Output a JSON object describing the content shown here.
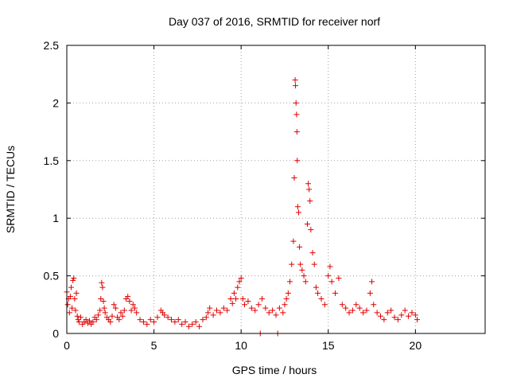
{
  "chart_data": {
    "type": "scatter",
    "title": "Day 037 of 2016, SRMTID for receiver norf",
    "xlabel": "GPS time / hours",
    "ylabel": "SRMTID / TECUs",
    "xlim": [
      0,
      24
    ],
    "ylim": [
      0,
      2.5
    ],
    "x_ticks": [
      0,
      5,
      10,
      15,
      20
    ],
    "x_tick_labels": [
      "0",
      "5",
      "10",
      "15",
      "20"
    ],
    "y_ticks": [
      0,
      0.5,
      1,
      1.5,
      2,
      2.5
    ],
    "y_tick_labels": [
      "0",
      "0.5",
      "1",
      "1.5",
      "2",
      "2.5"
    ],
    "grid": true,
    "marker": "+",
    "series": [
      {
        "name": "SRMTID",
        "color": "#e00000",
        "points": [
          [
            0.0,
            0.36
          ],
          [
            0.05,
            0.25
          ],
          [
            0.1,
            0.3
          ],
          [
            0.15,
            0.18
          ],
          [
            0.2,
            0.32
          ],
          [
            0.25,
            0.4
          ],
          [
            0.3,
            0.22
          ],
          [
            0.35,
            0.46
          ],
          [
            0.4,
            0.48
          ],
          [
            0.45,
            0.3
          ],
          [
            0.5,
            0.2
          ],
          [
            0.55,
            0.35
          ],
          [
            0.6,
            0.15
          ],
          [
            0.65,
            0.12
          ],
          [
            0.7,
            0.1
          ],
          [
            0.8,
            0.14
          ],
          [
            0.9,
            0.08
          ],
          [
            1.0,
            0.1
          ],
          [
            1.1,
            0.12
          ],
          [
            1.2,
            0.09
          ],
          [
            1.3,
            0.11
          ],
          [
            1.4,
            0.08
          ],
          [
            1.5,
            0.1
          ],
          [
            1.6,
            0.14
          ],
          [
            1.7,
            0.12
          ],
          [
            1.8,
            0.16
          ],
          [
            1.9,
            0.2
          ],
          [
            1.95,
            0.3
          ],
          [
            2.0,
            0.44
          ],
          [
            2.05,
            0.4
          ],
          [
            2.1,
            0.28
          ],
          [
            2.15,
            0.22
          ],
          [
            2.2,
            0.18
          ],
          [
            2.3,
            0.14
          ],
          [
            2.4,
            0.12
          ],
          [
            2.5,
            0.1
          ],
          [
            2.6,
            0.15
          ],
          [
            2.7,
            0.25
          ],
          [
            2.8,
            0.22
          ],
          [
            2.9,
            0.14
          ],
          [
            3.0,
            0.12
          ],
          [
            3.1,
            0.18
          ],
          [
            3.2,
            0.15
          ],
          [
            3.3,
            0.2
          ],
          [
            3.4,
            0.3
          ],
          [
            3.5,
            0.32
          ],
          [
            3.6,
            0.28
          ],
          [
            3.7,
            0.2
          ],
          [
            3.8,
            0.25
          ],
          [
            3.9,
            0.22
          ],
          [
            4.0,
            0.18
          ],
          [
            4.2,
            0.12
          ],
          [
            4.4,
            0.1
          ],
          [
            4.6,
            0.08
          ],
          [
            4.8,
            0.12
          ],
          [
            5.0,
            0.1
          ],
          [
            5.2,
            0.14
          ],
          [
            5.4,
            0.2
          ],
          [
            5.5,
            0.18
          ],
          [
            5.6,
            0.16
          ],
          [
            5.8,
            0.14
          ],
          [
            6.0,
            0.12
          ],
          [
            6.2,
            0.1
          ],
          [
            6.4,
            0.12
          ],
          [
            6.6,
            0.08
          ],
          [
            6.8,
            0.1
          ],
          [
            7.0,
            0.06
          ],
          [
            7.2,
            0.08
          ],
          [
            7.4,
            0.1
          ],
          [
            7.6,
            0.06
          ],
          [
            7.8,
            0.12
          ],
          [
            8.0,
            0.14
          ],
          [
            8.1,
            0.18
          ],
          [
            8.2,
            0.22
          ],
          [
            8.4,
            0.16
          ],
          [
            8.6,
            0.2
          ],
          [
            8.8,
            0.18
          ],
          [
            9.0,
            0.22
          ],
          [
            9.2,
            0.2
          ],
          [
            9.4,
            0.3
          ],
          [
            9.5,
            0.26
          ],
          [
            9.6,
            0.35
          ],
          [
            9.7,
            0.3
          ],
          [
            9.8,
            0.4
          ],
          [
            9.9,
            0.45
          ],
          [
            10.0,
            0.48
          ],
          [
            10.1,
            0.3
          ],
          [
            10.2,
            0.25
          ],
          [
            10.4,
            0.28
          ],
          [
            10.6,
            0.22
          ],
          [
            10.8,
            0.2
          ],
          [
            11.0,
            0.25
          ],
          [
            11.1,
            0.0
          ],
          [
            11.2,
            0.3
          ],
          [
            11.4,
            0.22
          ],
          [
            11.6,
            0.18
          ],
          [
            11.8,
            0.2
          ],
          [
            12.0,
            0.16
          ],
          [
            12.1,
            0.0
          ],
          [
            12.2,
            0.22
          ],
          [
            12.4,
            0.18
          ],
          [
            12.5,
            0.25
          ],
          [
            12.6,
            0.3
          ],
          [
            12.7,
            0.35
          ],
          [
            12.8,
            0.45
          ],
          [
            12.9,
            0.6
          ],
          [
            13.0,
            0.8
          ],
          [
            13.05,
            1.35
          ],
          [
            13.1,
            2.2
          ],
          [
            13.12,
            2.15
          ],
          [
            13.15,
            2.0
          ],
          [
            13.18,
            1.9
          ],
          [
            13.2,
            1.75
          ],
          [
            13.22,
            1.5
          ],
          [
            13.25,
            1.1
          ],
          [
            13.3,
            1.05
          ],
          [
            13.35,
            0.75
          ],
          [
            13.4,
            0.6
          ],
          [
            13.5,
            0.55
          ],
          [
            13.6,
            0.5
          ],
          [
            13.7,
            0.45
          ],
          [
            13.8,
            0.95
          ],
          [
            13.85,
            1.3
          ],
          [
            13.9,
            1.25
          ],
          [
            13.95,
            1.15
          ],
          [
            14.0,
            0.9
          ],
          [
            14.1,
            0.7
          ],
          [
            14.2,
            0.6
          ],
          [
            14.3,
            0.4
          ],
          [
            14.4,
            0.35
          ],
          [
            14.6,
            0.3
          ],
          [
            14.8,
            0.25
          ],
          [
            15.0,
            0.5
          ],
          [
            15.1,
            0.58
          ],
          [
            15.2,
            0.45
          ],
          [
            15.4,
            0.35
          ],
          [
            15.6,
            0.48
          ],
          [
            15.8,
            0.25
          ],
          [
            16.0,
            0.22
          ],
          [
            16.2,
            0.18
          ],
          [
            16.4,
            0.2
          ],
          [
            16.6,
            0.25
          ],
          [
            16.8,
            0.22
          ],
          [
            17.0,
            0.18
          ],
          [
            17.2,
            0.2
          ],
          [
            17.4,
            0.35
          ],
          [
            17.5,
            0.45
          ],
          [
            17.6,
            0.25
          ],
          [
            17.8,
            0.18
          ],
          [
            18.0,
            0.15
          ],
          [
            18.2,
            0.12
          ],
          [
            18.4,
            0.18
          ],
          [
            18.6,
            0.2
          ],
          [
            18.8,
            0.14
          ],
          [
            19.0,
            0.12
          ],
          [
            19.2,
            0.16
          ],
          [
            19.4,
            0.2
          ],
          [
            19.6,
            0.15
          ],
          [
            19.8,
            0.18
          ],
          [
            20.0,
            0.16
          ],
          [
            20.1,
            0.12
          ]
        ]
      }
    ]
  }
}
